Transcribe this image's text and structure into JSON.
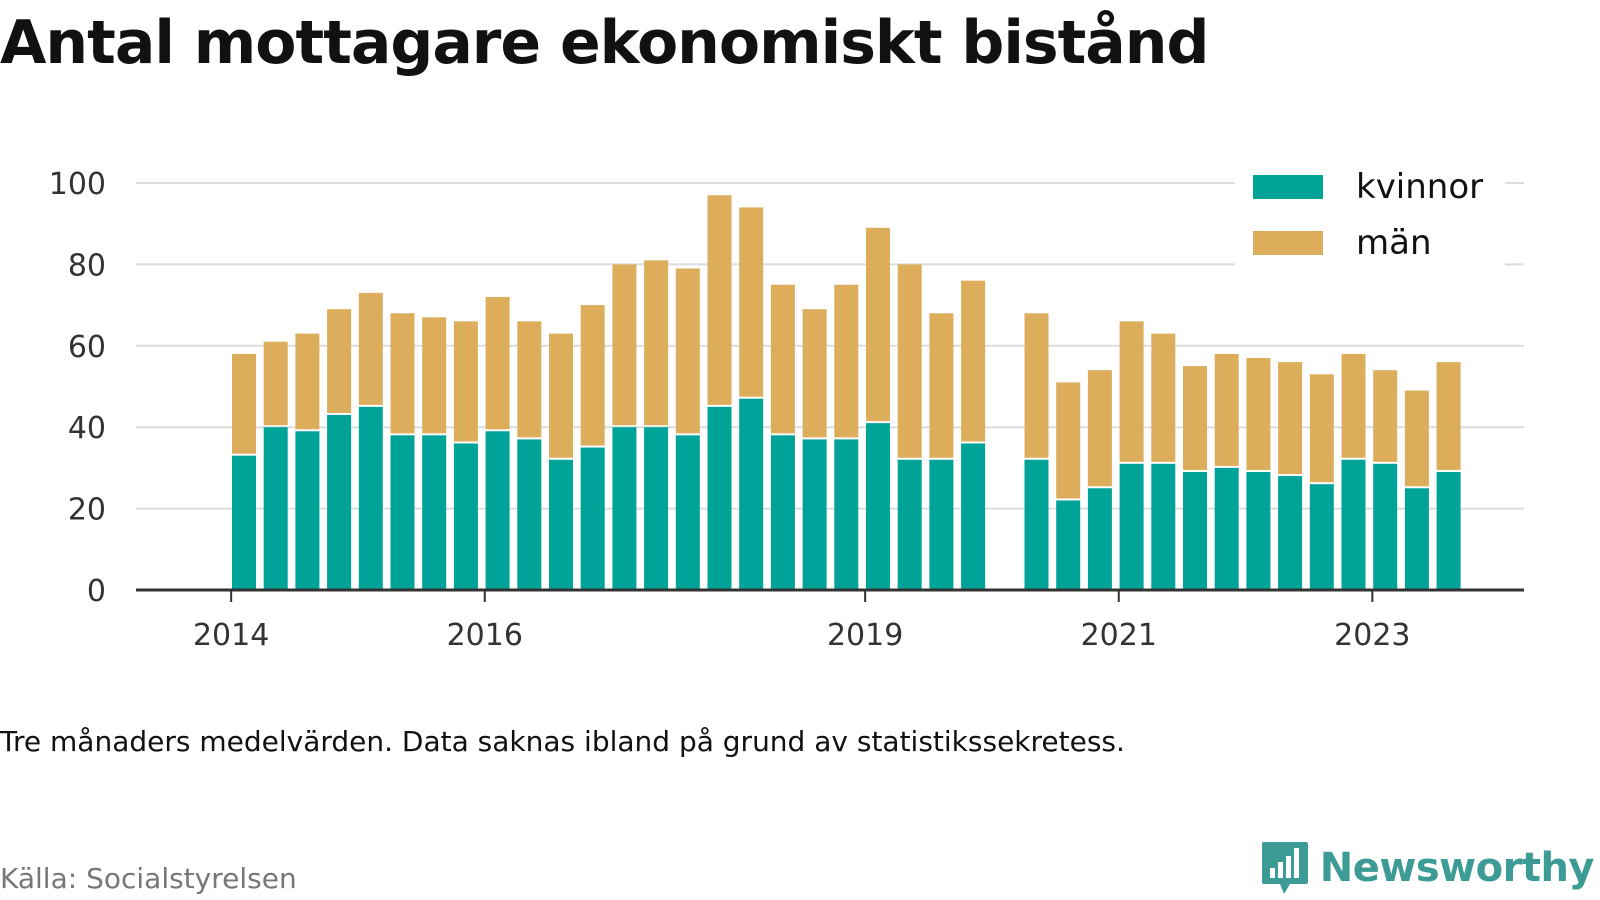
{
  "title": "Antal mottagare ekonomiskt bistånd",
  "subtitle": "Tre månaders medelvärden. Data saknas ibland på grund av statistikssekretess.",
  "source": "Källa: Socialstyrelsen",
  "brand": {
    "name": "Newsworthy",
    "icon": "bar-chart-speech-icon"
  },
  "colors": {
    "kvinnor": "#00a398",
    "man": "#dcae5c",
    "grid": "#dddddd",
    "axis": "#333333",
    "brand": "#3d9b95"
  },
  "chart_data": {
    "type": "bar",
    "stacked": true,
    "title": "Antal mottagare ekonomiskt bistånd",
    "xlabel": "",
    "ylabel": "",
    "ylim": [
      0,
      100
    ],
    "yticks": [
      0,
      20,
      40,
      60,
      80,
      100
    ],
    "legend": "top-right",
    "x_ticks": [
      {
        "label": "2014",
        "index": -0.5
      },
      {
        "label": "2016",
        "index": 7.5
      },
      {
        "label": "2019",
        "index": 19.5
      },
      {
        "label": "2021",
        "index": 27.5
      },
      {
        "label": "2023",
        "index": 35.5
      }
    ],
    "periods": 39,
    "missing_periods": [
      25
    ],
    "series": [
      {
        "name": "kvinnor",
        "values": [
          33,
          40,
          39,
          43,
          45,
          38,
          38,
          36,
          39,
          37,
          32,
          35,
          40,
          40,
          38,
          45,
          47,
          38,
          37,
          37,
          41,
          32,
          32,
          36,
          null,
          32,
          22,
          25,
          31,
          31,
          29,
          30,
          29,
          28,
          26,
          32,
          31,
          25,
          29
        ]
      },
      {
        "name": "män",
        "values": [
          25,
          21,
          24,
          26,
          28,
          30,
          29,
          30,
          33,
          29,
          31,
          35,
          40,
          41,
          41,
          52,
          47,
          37,
          32,
          38,
          48,
          48,
          36,
          40,
          null,
          36,
          29,
          29,
          35,
          32,
          26,
          28,
          28,
          28,
          27,
          26,
          23,
          24,
          27
        ]
      }
    ]
  }
}
